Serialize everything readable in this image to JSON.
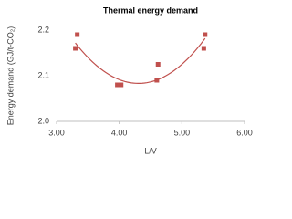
{
  "chart_data": {
    "type": "scatter",
    "title": "Thermal energy demand",
    "x_label": "L/V",
    "y_label": "Energy demand (GJ/t-CO₂)",
    "series": [
      {
        "name": "Energy demand",
        "color": "#c0504d",
        "x": [
          3.3,
          3.33,
          3.97,
          4.0,
          4.03,
          4.6,
          4.62,
          5.35,
          5.37
        ],
        "values": [
          2.16,
          2.19,
          2.08,
          2.08,
          2.08,
          2.09,
          2.125,
          2.16,
          2.19
        ]
      }
    ],
    "trendline": {
      "type": "polynomial",
      "order": 2,
      "color": "#c0504d"
    },
    "xlim": [
      3,
      6
    ],
    "xticks": [
      {
        "value": 3,
        "label": "3.00"
      },
      {
        "value": 4,
        "label": "4.00"
      },
      {
        "value": 5,
        "label": "5.00"
      },
      {
        "value": 6,
        "label": "6.00"
      }
    ],
    "ylim": [
      2,
      2.2
    ],
    "yticks": [
      {
        "value": 2,
        "label": "2.0"
      },
      2.1,
      2.2
    ],
    "grid": false
  }
}
